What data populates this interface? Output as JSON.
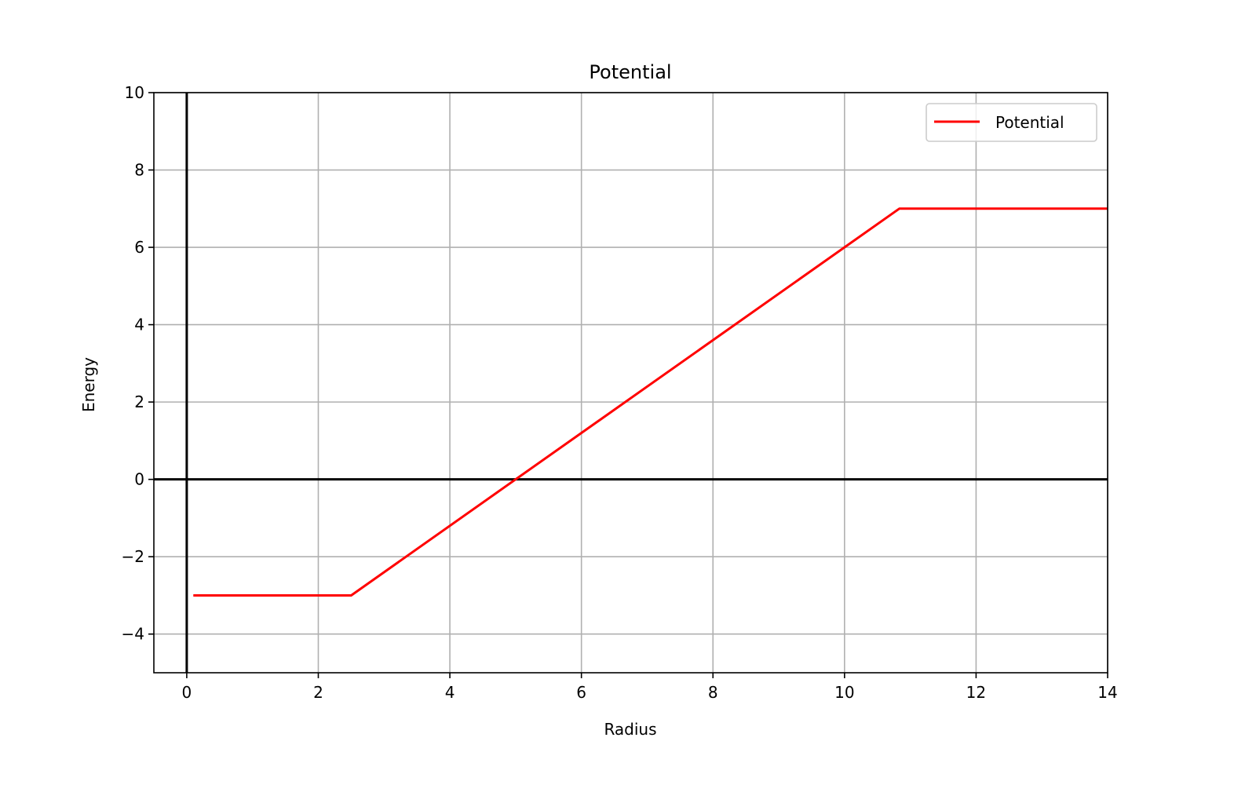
{
  "chart_data": {
    "type": "line",
    "title": "Potential",
    "xlabel": "Radius",
    "ylabel": "Energy",
    "xlim": [
      -0.5,
      14
    ],
    "ylim": [
      -5,
      10
    ],
    "xticks": [
      0,
      2,
      4,
      6,
      8,
      10,
      12,
      14
    ],
    "yticks": [
      -4,
      -2,
      0,
      2,
      4,
      6,
      8,
      10
    ],
    "xtick_labels": [
      "0",
      "2",
      "4",
      "6",
      "8",
      "10",
      "12",
      "14"
    ],
    "ytick_labels": [
      "−4",
      "−2",
      "0",
      "2",
      "4",
      "6",
      "8",
      "10"
    ],
    "grid": true,
    "reference_lines": {
      "x": 0,
      "y": 0,
      "color": "#000000"
    },
    "legend": {
      "placement": "top-right",
      "entries": [
        "Potential"
      ]
    },
    "series": [
      {
        "name": "Potential",
        "color": "#ff0000",
        "x": [
          0.1,
          2.5,
          10.833,
          14
        ],
        "y": [
          -3,
          -3,
          7,
          7
        ]
      }
    ]
  }
}
